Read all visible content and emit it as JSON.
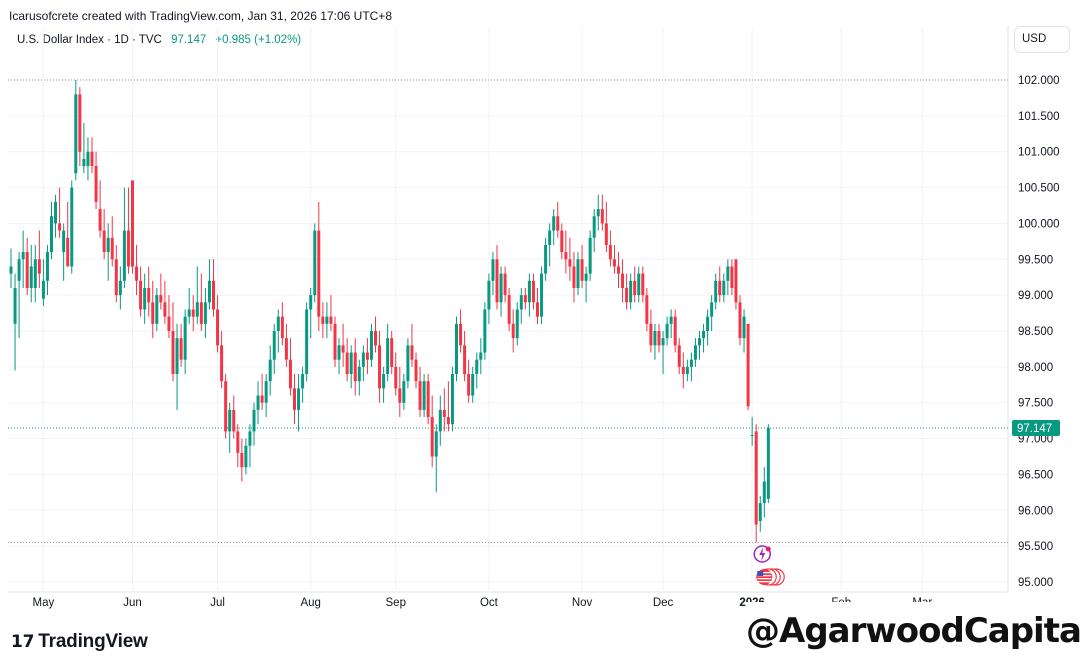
{
  "attribution": "Icarusofcrete created with TradingView.com, Jan 31, 2026 17:06 UTC+8",
  "legend": {
    "symbol": "U.S. Dollar Index · 1D · TVC",
    "last": "97.147",
    "change": "+0.985 (+1.02%)"
  },
  "currency": "USD",
  "brand": "TradingView",
  "watermark": "@AgarwoodCapital",
  "colors": {
    "up": "#089981",
    "down": "#f23645",
    "axis_label": "#089981"
  },
  "chart_data": {
    "type": "candlestick",
    "symbol": "U.S. Dollar Index",
    "interval": "1D",
    "ylim": [
      94.85,
      102.4
    ],
    "y_ticks": [
      "102.000",
      "101.500",
      "101.000",
      "100.500",
      "100.000",
      "99.500",
      "99.000",
      "98.500",
      "98.000",
      "97.500",
      "97.000",
      "96.500",
      "96.000",
      "95.500",
      "95.000"
    ],
    "x_labels": [
      {
        "label": "May",
        "bar": 8
      },
      {
        "label": "Jun",
        "bar": 30
      },
      {
        "label": "Jul",
        "bar": 51
      },
      {
        "label": "Aug",
        "bar": 74
      },
      {
        "label": "Sep",
        "bar": 95
      },
      {
        "label": "Oct",
        "bar": 118
      },
      {
        "label": "Nov",
        "bar": 141
      },
      {
        "label": "Dec",
        "bar": 161
      },
      {
        "label": "2026",
        "bar": 183,
        "bold": true
      },
      {
        "label": "Feb",
        "bar": 205
      },
      {
        "label": "Mar",
        "bar": 225
      }
    ],
    "reference_lines": {
      "high": 102.0,
      "last": 97.147,
      "low": 95.55
    },
    "last_price_label": "97.147",
    "candles": [
      {
        "o": 99.3,
        "h": 99.65,
        "l": 99.1,
        "c": 99.4
      },
      {
        "o": 98.6,
        "h": 99.3,
        "l": 97.95,
        "c": 99.1
      },
      {
        "o": 99.2,
        "h": 99.6,
        "l": 98.4,
        "c": 99.5
      },
      {
        "o": 99.5,
        "h": 99.9,
        "l": 99.1,
        "c": 99.6
      },
      {
        "o": 99.6,
        "h": 99.8,
        "l": 99.0,
        "c": 99.1
      },
      {
        "o": 99.1,
        "h": 99.7,
        "l": 98.9,
        "c": 99.4
      },
      {
        "o": 99.1,
        "h": 99.7,
        "l": 98.9,
        "c": 99.5
      },
      {
        "o": 99.5,
        "h": 99.9,
        "l": 99.1,
        "c": 99.3
      },
      {
        "o": 98.95,
        "h": 99.5,
        "l": 98.85,
        "c": 99.2
      },
      {
        "o": 99.2,
        "h": 99.7,
        "l": 99.0,
        "c": 99.6
      },
      {
        "o": 99.6,
        "h": 100.3,
        "l": 99.5,
        "c": 100.1
      },
      {
        "o": 100.0,
        "h": 100.4,
        "l": 99.8,
        "c": 100.3
      },
      {
        "o": 100.0,
        "h": 100.5,
        "l": 99.8,
        "c": 99.9
      },
      {
        "o": 99.6,
        "h": 100.0,
        "l": 99.2,
        "c": 99.9
      },
      {
        "o": 99.8,
        "h": 100.3,
        "l": 99.4,
        "c": 99.4
      },
      {
        "o": 99.4,
        "h": 100.6,
        "l": 99.3,
        "c": 100.5
      },
      {
        "o": 100.7,
        "h": 102.0,
        "l": 100.6,
        "c": 101.8
      },
      {
        "o": 101.8,
        "h": 101.9,
        "l": 100.8,
        "c": 101.0
      },
      {
        "o": 100.8,
        "h": 101.4,
        "l": 100.7,
        "c": 100.9
      },
      {
        "o": 100.8,
        "h": 101.2,
        "l": 100.6,
        "c": 101.0
      },
      {
        "o": 101.0,
        "h": 101.2,
        "l": 100.7,
        "c": 100.8
      },
      {
        "o": 100.8,
        "h": 101.0,
        "l": 100.2,
        "c": 100.3
      },
      {
        "o": 100.2,
        "h": 100.6,
        "l": 99.8,
        "c": 99.9
      },
      {
        "o": 99.9,
        "h": 100.2,
        "l": 99.5,
        "c": 99.6
      },
      {
        "o": 99.6,
        "h": 100.0,
        "l": 99.2,
        "c": 99.8
      },
      {
        "o": 99.8,
        "h": 100.1,
        "l": 99.4,
        "c": 99.5
      },
      {
        "o": 99.5,
        "h": 99.7,
        "l": 98.9,
        "c": 99.0
      },
      {
        "o": 99.0,
        "h": 99.4,
        "l": 98.8,
        "c": 99.2
      },
      {
        "o": 99.2,
        "h": 100.5,
        "l": 99.1,
        "c": 99.9
      },
      {
        "o": 99.9,
        "h": 100.5,
        "l": 99.3,
        "c": 99.4
      },
      {
        "o": 100.6,
        "h": 100.6,
        "l": 99.3,
        "c": 99.4
      },
      {
        "o": 99.4,
        "h": 99.7,
        "l": 99.0,
        "c": 99.2
      },
      {
        "o": 99.2,
        "h": 99.4,
        "l": 98.7,
        "c": 98.8
      },
      {
        "o": 98.8,
        "h": 99.3,
        "l": 98.6,
        "c": 99.1
      },
      {
        "o": 99.1,
        "h": 99.4,
        "l": 98.7,
        "c": 98.9
      },
      {
        "o": 98.9,
        "h": 99.2,
        "l": 98.4,
        "c": 98.6
      },
      {
        "o": 98.6,
        "h": 99.1,
        "l": 98.5,
        "c": 99.0
      },
      {
        "o": 99.0,
        "h": 99.3,
        "l": 98.8,
        "c": 98.9
      },
      {
        "o": 98.9,
        "h": 99.2,
        "l": 98.6,
        "c": 98.7
      },
      {
        "o": 98.7,
        "h": 99.0,
        "l": 98.4,
        "c": 98.5
      },
      {
        "o": 98.5,
        "h": 98.9,
        "l": 97.8,
        "c": 97.9
      },
      {
        "o": 97.9,
        "h": 98.6,
        "l": 97.4,
        "c": 98.4
      },
      {
        "o": 98.4,
        "h": 98.6,
        "l": 98.0,
        "c": 98.1
      },
      {
        "o": 98.1,
        "h": 98.8,
        "l": 97.9,
        "c": 98.7
      },
      {
        "o": 98.7,
        "h": 99.1,
        "l": 98.6,
        "c": 98.8
      },
      {
        "o": 98.8,
        "h": 99.0,
        "l": 98.5,
        "c": 98.7
      },
      {
        "o": 98.7,
        "h": 99.4,
        "l": 98.6,
        "c": 98.9
      },
      {
        "o": 98.9,
        "h": 99.3,
        "l": 98.5,
        "c": 98.6
      },
      {
        "o": 98.6,
        "h": 99.1,
        "l": 98.4,
        "c": 98.9
      },
      {
        "o": 98.9,
        "h": 99.5,
        "l": 98.8,
        "c": 99.2
      },
      {
        "o": 99.2,
        "h": 99.5,
        "l": 98.7,
        "c": 98.8
      },
      {
        "o": 98.8,
        "h": 99.0,
        "l": 98.2,
        "c": 98.3
      },
      {
        "o": 98.3,
        "h": 98.5,
        "l": 97.7,
        "c": 97.8
      },
      {
        "o": 97.8,
        "h": 97.9,
        "l": 97.0,
        "c": 97.1
      },
      {
        "o": 97.1,
        "h": 97.5,
        "l": 96.8,
        "c": 97.4
      },
      {
        "o": 97.4,
        "h": 97.6,
        "l": 97.0,
        "c": 97.1
      },
      {
        "o": 97.1,
        "h": 97.2,
        "l": 96.6,
        "c": 96.8
      },
      {
        "o": 96.8,
        "h": 97.0,
        "l": 96.4,
        "c": 96.6
      },
      {
        "o": 96.6,
        "h": 97.0,
        "l": 96.5,
        "c": 96.9
      },
      {
        "o": 96.9,
        "h": 97.2,
        "l": 96.6,
        "c": 97.1
      },
      {
        "o": 97.1,
        "h": 97.5,
        "l": 96.9,
        "c": 97.4
      },
      {
        "o": 97.4,
        "h": 97.8,
        "l": 97.2,
        "c": 97.6
      },
      {
        "o": 97.6,
        "h": 97.9,
        "l": 97.4,
        "c": 97.5
      },
      {
        "o": 97.5,
        "h": 97.9,
        "l": 97.3,
        "c": 97.8
      },
      {
        "o": 97.8,
        "h": 98.3,
        "l": 97.6,
        "c": 98.1
      },
      {
        "o": 98.1,
        "h": 98.6,
        "l": 97.9,
        "c": 98.5
      },
      {
        "o": 98.5,
        "h": 98.8,
        "l": 98.2,
        "c": 98.7
      },
      {
        "o": 98.7,
        "h": 98.9,
        "l": 98.3,
        "c": 98.4
      },
      {
        "o": 98.4,
        "h": 98.6,
        "l": 98.0,
        "c": 98.1
      },
      {
        "o": 98.1,
        "h": 98.4,
        "l": 97.6,
        "c": 97.7
      },
      {
        "o": 97.7,
        "h": 97.9,
        "l": 97.2,
        "c": 97.4
      },
      {
        "o": 97.4,
        "h": 97.9,
        "l": 97.1,
        "c": 97.7
      },
      {
        "o": 97.7,
        "h": 98.0,
        "l": 97.5,
        "c": 97.9
      },
      {
        "o": 97.9,
        "h": 98.9,
        "l": 97.8,
        "c": 98.8
      },
      {
        "o": 98.8,
        "h": 99.1,
        "l": 98.4,
        "c": 99.0
      },
      {
        "o": 99.0,
        "h": 100.0,
        "l": 98.9,
        "c": 99.9
      },
      {
        "o": 99.9,
        "h": 100.3,
        "l": 98.5,
        "c": 98.7
      },
      {
        "o": 98.7,
        "h": 98.9,
        "l": 98.4,
        "c": 98.6
      },
      {
        "o": 98.6,
        "h": 98.9,
        "l": 98.4,
        "c": 98.7
      },
      {
        "o": 98.7,
        "h": 99.0,
        "l": 98.5,
        "c": 98.6
      },
      {
        "o": 98.6,
        "h": 98.7,
        "l": 98.0,
        "c": 98.1
      },
      {
        "o": 98.1,
        "h": 98.4,
        "l": 97.9,
        "c": 98.3
      },
      {
        "o": 98.3,
        "h": 98.6,
        "l": 98.0,
        "c": 98.2
      },
      {
        "o": 98.2,
        "h": 98.4,
        "l": 97.8,
        "c": 97.9
      },
      {
        "o": 97.9,
        "h": 98.3,
        "l": 97.7,
        "c": 98.2
      },
      {
        "o": 98.2,
        "h": 98.4,
        "l": 97.6,
        "c": 97.8
      },
      {
        "o": 97.8,
        "h": 98.1,
        "l": 97.6,
        "c": 98.0
      },
      {
        "o": 98.0,
        "h": 98.3,
        "l": 97.8,
        "c": 98.2
      },
      {
        "o": 98.2,
        "h": 98.4,
        "l": 97.9,
        "c": 98.1
      },
      {
        "o": 98.1,
        "h": 98.6,
        "l": 98.0,
        "c": 98.5
      },
      {
        "o": 98.5,
        "h": 98.7,
        "l": 98.2,
        "c": 98.3
      },
      {
        "o": 98.3,
        "h": 98.5,
        "l": 97.5,
        "c": 97.7
      },
      {
        "o": 97.7,
        "h": 98.0,
        "l": 97.5,
        "c": 97.9
      },
      {
        "o": 97.9,
        "h": 98.6,
        "l": 97.8,
        "c": 98.4
      },
      {
        "o": 98.4,
        "h": 98.5,
        "l": 97.9,
        "c": 98.0
      },
      {
        "o": 98.0,
        "h": 98.2,
        "l": 97.6,
        "c": 97.7
      },
      {
        "o": 97.7,
        "h": 98.0,
        "l": 97.3,
        "c": 97.5
      },
      {
        "o": 97.5,
        "h": 97.9,
        "l": 97.4,
        "c": 97.8
      },
      {
        "o": 97.8,
        "h": 98.4,
        "l": 97.7,
        "c": 98.3
      },
      {
        "o": 98.3,
        "h": 98.6,
        "l": 98.0,
        "c": 98.1
      },
      {
        "o": 98.1,
        "h": 98.2,
        "l": 97.7,
        "c": 97.8
      },
      {
        "o": 97.8,
        "h": 98.0,
        "l": 97.3,
        "c": 97.4
      },
      {
        "o": 97.4,
        "h": 97.9,
        "l": 97.3,
        "c": 97.8
      },
      {
        "o": 97.8,
        "h": 97.9,
        "l": 97.2,
        "c": 97.3
      },
      {
        "o": 97.3,
        "h": 97.6,
        "l": 96.6,
        "c": 96.75
      },
      {
        "o": 96.75,
        "h": 97.2,
        "l": 96.25,
        "c": 97.1
      },
      {
        "o": 97.1,
        "h": 97.6,
        "l": 96.9,
        "c": 97.4
      },
      {
        "o": 97.4,
        "h": 97.7,
        "l": 97.1,
        "c": 97.3
      },
      {
        "o": 97.3,
        "h": 97.8,
        "l": 97.1,
        "c": 97.2
      },
      {
        "o": 97.2,
        "h": 98.0,
        "l": 97.1,
        "c": 97.9
      },
      {
        "o": 97.9,
        "h": 98.7,
        "l": 97.8,
        "c": 98.6
      },
      {
        "o": 98.6,
        "h": 98.8,
        "l": 98.2,
        "c": 98.3
      },
      {
        "o": 98.3,
        "h": 98.5,
        "l": 97.8,
        "c": 97.9
      },
      {
        "o": 97.9,
        "h": 98.1,
        "l": 97.5,
        "c": 97.6
      },
      {
        "o": 97.6,
        "h": 98.0,
        "l": 97.5,
        "c": 97.9
      },
      {
        "o": 97.9,
        "h": 98.2,
        "l": 97.7,
        "c": 98.1
      },
      {
        "o": 98.1,
        "h": 98.4,
        "l": 97.9,
        "c": 98.2
      },
      {
        "o": 98.2,
        "h": 98.9,
        "l": 98.1,
        "c": 98.8
      },
      {
        "o": 98.8,
        "h": 99.3,
        "l": 98.6,
        "c": 99.2
      },
      {
        "o": 99.2,
        "h": 99.6,
        "l": 99.0,
        "c": 99.5
      },
      {
        "o": 99.5,
        "h": 99.7,
        "l": 98.8,
        "c": 98.9
      },
      {
        "o": 98.9,
        "h": 99.4,
        "l": 98.7,
        "c": 99.3
      },
      {
        "o": 99.3,
        "h": 99.4,
        "l": 98.9,
        "c": 99.0
      },
      {
        "o": 99.0,
        "h": 99.1,
        "l": 98.5,
        "c": 98.6
      },
      {
        "o": 98.6,
        "h": 98.8,
        "l": 98.2,
        "c": 98.4
      },
      {
        "o": 98.4,
        "h": 98.9,
        "l": 98.3,
        "c": 98.8
      },
      {
        "o": 98.8,
        "h": 99.1,
        "l": 98.6,
        "c": 99.0
      },
      {
        "o": 99.0,
        "h": 99.1,
        "l": 98.8,
        "c": 98.9
      },
      {
        "o": 98.9,
        "h": 99.3,
        "l": 98.7,
        "c": 99.2
      },
      {
        "o": 99.2,
        "h": 99.3,
        "l": 98.8,
        "c": 98.9
      },
      {
        "o": 98.9,
        "h": 99.1,
        "l": 98.6,
        "c": 98.7
      },
      {
        "o": 98.7,
        "h": 99.4,
        "l": 98.6,
        "c": 99.3
      },
      {
        "o": 99.3,
        "h": 99.8,
        "l": 99.2,
        "c": 99.7
      },
      {
        "o": 99.7,
        "h": 100.0,
        "l": 99.4,
        "c": 99.9
      },
      {
        "o": 99.9,
        "h": 100.2,
        "l": 99.7,
        "c": 100.1
      },
      {
        "o": 100.1,
        "h": 100.3,
        "l": 99.8,
        "c": 99.9
      },
      {
        "o": 99.9,
        "h": 100.0,
        "l": 99.5,
        "c": 99.6
      },
      {
        "o": 99.6,
        "h": 99.9,
        "l": 99.3,
        "c": 99.5
      },
      {
        "o": 99.5,
        "h": 99.8,
        "l": 99.2,
        "c": 99.4
      },
      {
        "o": 99.4,
        "h": 99.6,
        "l": 98.9,
        "c": 99.1
      },
      {
        "o": 99.1,
        "h": 99.6,
        "l": 99.0,
        "c": 99.5
      },
      {
        "o": 99.5,
        "h": 99.7,
        "l": 99.1,
        "c": 99.2
      },
      {
        "o": 99.2,
        "h": 99.4,
        "l": 98.9,
        "c": 99.3
      },
      {
        "o": 99.3,
        "h": 99.9,
        "l": 99.2,
        "c": 99.8
      },
      {
        "o": 99.8,
        "h": 100.2,
        "l": 99.6,
        "c": 100.1
      },
      {
        "o": 100.1,
        "h": 100.4,
        "l": 99.9,
        "c": 100.2
      },
      {
        "o": 100.2,
        "h": 100.4,
        "l": 99.9,
        "c": 100.0
      },
      {
        "o": 100.0,
        "h": 100.3,
        "l": 99.6,
        "c": 99.7
      },
      {
        "o": 99.7,
        "h": 99.9,
        "l": 99.4,
        "c": 99.5
      },
      {
        "o": 99.5,
        "h": 99.7,
        "l": 99.3,
        "c": 99.4
      },
      {
        "o": 99.4,
        "h": 99.6,
        "l": 99.1,
        "c": 99.3
      },
      {
        "o": 99.3,
        "h": 99.5,
        "l": 98.9,
        "c": 99.1
      },
      {
        "o": 99.1,
        "h": 99.3,
        "l": 98.8,
        "c": 98.9
      },
      {
        "o": 98.9,
        "h": 99.3,
        "l": 98.8,
        "c": 99.2
      },
      {
        "o": 99.2,
        "h": 99.4,
        "l": 98.9,
        "c": 99.0
      },
      {
        "o": 99.0,
        "h": 99.4,
        "l": 98.9,
        "c": 99.3
      },
      {
        "o": 99.3,
        "h": 99.4,
        "l": 98.9,
        "c": 99.0
      },
      {
        "o": 99.0,
        "h": 99.1,
        "l": 98.5,
        "c": 98.6
      },
      {
        "o": 98.6,
        "h": 98.8,
        "l": 98.2,
        "c": 98.3
      },
      {
        "o": 98.3,
        "h": 98.6,
        "l": 98.1,
        "c": 98.5
      },
      {
        "o": 98.5,
        "h": 98.6,
        "l": 98.2,
        "c": 98.3
      },
      {
        "o": 98.3,
        "h": 98.5,
        "l": 97.9,
        "c": 98.4
      },
      {
        "o": 98.4,
        "h": 98.7,
        "l": 98.3,
        "c": 98.6
      },
      {
        "o": 98.6,
        "h": 98.8,
        "l": 98.4,
        "c": 98.7
      },
      {
        "o": 98.7,
        "h": 98.8,
        "l": 98.2,
        "c": 98.3
      },
      {
        "o": 98.3,
        "h": 98.4,
        "l": 97.9,
        "c": 98.0
      },
      {
        "o": 98.0,
        "h": 98.2,
        "l": 97.7,
        "c": 97.9
      },
      {
        "o": 97.9,
        "h": 98.1,
        "l": 97.8,
        "c": 98.0
      },
      {
        "o": 98.0,
        "h": 98.2,
        "l": 97.8,
        "c": 98.1
      },
      {
        "o": 98.1,
        "h": 98.4,
        "l": 98.0,
        "c": 98.3
      },
      {
        "o": 98.3,
        "h": 98.5,
        "l": 98.1,
        "c": 98.4
      },
      {
        "o": 98.4,
        "h": 98.6,
        "l": 98.2,
        "c": 98.5
      },
      {
        "o": 98.5,
        "h": 98.8,
        "l": 98.3,
        "c": 98.7
      },
      {
        "o": 98.7,
        "h": 99.0,
        "l": 98.5,
        "c": 98.9
      },
      {
        "o": 98.9,
        "h": 99.3,
        "l": 98.8,
        "c": 99.2
      },
      {
        "o": 99.2,
        "h": 99.4,
        "l": 98.9,
        "c": 99.0
      },
      {
        "o": 99.0,
        "h": 99.3,
        "l": 98.9,
        "c": 99.2
      },
      {
        "o": 99.2,
        "h": 99.5,
        "l": 99.0,
        "c": 99.4
      },
      {
        "o": 99.4,
        "h": 99.5,
        "l": 99.0,
        "c": 99.1
      },
      {
        "o": 99.5,
        "h": 99.5,
        "l": 98.8,
        "c": 98.9
      },
      {
        "o": 98.9,
        "h": 99.0,
        "l": 98.3,
        "c": 98.4
      },
      {
        "o": 98.4,
        "h": 98.8,
        "l": 98.2,
        "c": 98.7
      },
      {
        "o": 98.6,
        "h": 98.6,
        "l": 97.4,
        "c": 97.45
      },
      {
        "o": 97.05,
        "h": 97.3,
        "l": 96.9,
        "c": 97.05
      },
      {
        "o": 97.1,
        "h": 97.2,
        "l": 95.55,
        "c": 95.8
      },
      {
        "o": 95.85,
        "h": 96.2,
        "l": 95.7,
        "c": 96.1
      },
      {
        "o": 96.1,
        "h": 96.6,
        "l": 95.9,
        "c": 96.4
      },
      {
        "o": 96.16,
        "h": 97.2,
        "l": 96.1,
        "c": 97.147
      }
    ]
  }
}
